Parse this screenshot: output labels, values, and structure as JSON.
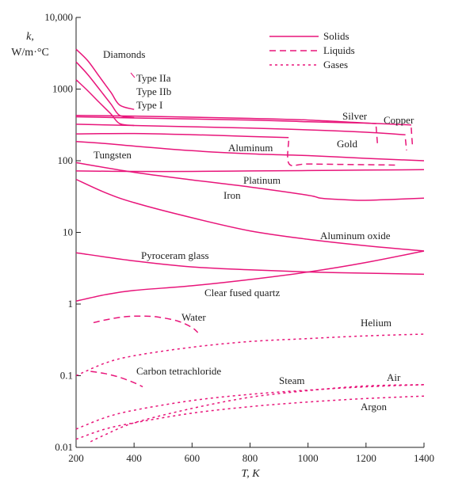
{
  "chart_data": {
    "type": "line",
    "title": "",
    "xlabel": "T, K",
    "ylabel_line1": "k,",
    "ylabel_line2": "W/m·°C",
    "x_range": [
      200,
      1400
    ],
    "y_range": [
      0.01,
      10000
    ],
    "y_scale": "log",
    "grid": false,
    "legend_placement": "top-right",
    "color": "#e8157a",
    "x_ticks": [
      {
        "value": 200,
        "label": "200"
      },
      {
        "value": 400,
        "label": "400"
      },
      {
        "value": 600,
        "label": "600"
      },
      {
        "value": 800,
        "label": "800"
      },
      {
        "value": 1000,
        "label": "1000"
      },
      {
        "value": 1200,
        "label": "1200"
      },
      {
        "value": 1400,
        "label": "1400"
      }
    ],
    "y_ticks": [
      {
        "value": 0.01,
        "label": "0.01"
      },
      {
        "value": 0.1,
        "label": "0.1"
      },
      {
        "value": 1,
        "label": "1"
      },
      {
        "value": 10,
        "label": "10"
      },
      {
        "value": 100,
        "label": "100"
      },
      {
        "value": 1000,
        "label": "1000"
      },
      {
        "value": 10000,
        "label": "10,000"
      }
    ],
    "legend": [
      {
        "label": "Solids",
        "style": "solid"
      },
      {
        "label": "Liquids",
        "style": "dashed"
      },
      {
        "label": "Gases",
        "style": "dotted"
      }
    ],
    "series": [
      {
        "id": "diamond-type-iia",
        "style": "solid",
        "x": [
          200,
          240,
          280,
          320,
          350,
          400
        ],
        "y": [
          3600,
          2500,
          1500,
          900,
          600,
          520
        ]
      },
      {
        "id": "diamond-type-iib",
        "style": "solid",
        "x": [
          200,
          240,
          280,
          320,
          350,
          400
        ],
        "y": [
          2400,
          1600,
          1000,
          620,
          430,
          400
        ]
      },
      {
        "id": "diamond-type-i",
        "style": "solid",
        "x": [
          200,
          240,
          280,
          320,
          350,
          400
        ],
        "y": [
          1350,
          950,
          650,
          450,
          330,
          310
        ]
      },
      {
        "id": "silver",
        "style": "solid",
        "x": [
          200,
          400,
          800,
          1000,
          1235
        ],
        "y": [
          430,
          420,
          390,
          370,
          330
        ]
      },
      {
        "id": "silver-liquid",
        "style": "dashed",
        "x": [
          1235,
          1240
        ],
        "y": [
          300,
          160
        ]
      },
      {
        "id": "copper",
        "style": "solid",
        "x": [
          200,
          400,
          800,
          1000,
          1200,
          1356
        ],
        "y": [
          410,
          395,
          370,
          350,
          335,
          315
        ]
      },
      {
        "id": "copper-liquid",
        "style": "dashed",
        "x": [
          1356,
          1360
        ],
        "y": [
          290,
          165
        ]
      },
      {
        "id": "gold",
        "style": "solid",
        "x": [
          200,
          400,
          800,
          1000,
          1200,
          1336
        ],
        "y": [
          323,
          310,
          285,
          270,
          250,
          230
        ]
      },
      {
        "id": "gold-liquid",
        "style": "dashed",
        "x": [
          1336,
          1340
        ],
        "y": [
          200,
          140
        ]
      },
      {
        "id": "aluminum",
        "style": "solid",
        "x": [
          200,
          400,
          600,
          800,
          933
        ],
        "y": [
          237,
          240,
          231,
          218,
          210
        ]
      },
      {
        "id": "aluminum-liquid",
        "style": "dashed",
        "x": [
          933,
          935,
          1000,
          1200,
          1300
        ],
        "y": [
          190,
          90,
          90,
          88,
          87
        ]
      },
      {
        "id": "tungsten",
        "style": "solid",
        "x": [
          200,
          300,
          400,
          600,
          800,
          1000,
          1200,
          1400
        ],
        "y": [
          185,
          174,
          160,
          138,
          125,
          118,
          108,
          100
        ]
      },
      {
        "id": "platinum",
        "style": "solid",
        "x": [
          200,
          400,
          600,
          800,
          1000,
          1200,
          1400
        ],
        "y": [
          72,
          71,
          71,
          72,
          73,
          74,
          75
        ]
      },
      {
        "id": "iron",
        "style": "solid",
        "x": [
          200,
          400,
          600,
          800,
          1000,
          1043,
          1100,
          1184,
          1300,
          1400
        ],
        "y": [
          94,
          69,
          54,
          43,
          33,
          30,
          29,
          28,
          29,
          30
        ]
      },
      {
        "id": "aluminum-oxide",
        "style": "solid",
        "x": [
          200,
          300,
          400,
          600,
          800,
          1000,
          1200,
          1400
        ],
        "y": [
          55,
          36,
          26,
          16,
          10.5,
          8,
          6.5,
          5.5
        ]
      },
      {
        "id": "pyroceram-glass",
        "style": "solid",
        "x": [
          200,
          400,
          600,
          800,
          1000,
          1200,
          1400
        ],
        "y": [
          5.2,
          4.0,
          3.3,
          3.0,
          2.8,
          2.7,
          2.6
        ]
      },
      {
        "id": "clear-fused-quartz",
        "style": "solid",
        "x": [
          200,
          300,
          400,
          600,
          800,
          1000,
          1200,
          1400
        ],
        "y": [
          1.1,
          1.35,
          1.55,
          1.8,
          2.2,
          2.8,
          3.8,
          5.5
        ]
      },
      {
        "id": "water",
        "style": "dashed",
        "x": [
          260,
          300,
          360,
          420,
          480,
          550,
          600,
          620
        ],
        "y": [
          0.55,
          0.6,
          0.66,
          0.68,
          0.66,
          0.58,
          0.47,
          0.4
        ]
      },
      {
        "id": "carbon-tetrachloride",
        "style": "dashed",
        "x": [
          250,
          300,
          350,
          400,
          430
        ],
        "y": [
          0.115,
          0.107,
          0.095,
          0.08,
          0.07
        ]
      },
      {
        "id": "helium",
        "style": "dotted",
        "x": [
          200,
          300,
          400,
          600,
          800,
          1000,
          1200,
          1400
        ],
        "y": [
          0.1,
          0.15,
          0.19,
          0.25,
          0.3,
          0.33,
          0.36,
          0.38
        ]
      },
      {
        "id": "steam",
        "style": "dotted",
        "x": [
          250,
          300,
          400,
          600,
          800,
          1000,
          1200,
          1400
        ],
        "y": [
          0.012,
          0.015,
          0.022,
          0.035,
          0.05,
          0.062,
          0.072,
          0.075
        ]
      },
      {
        "id": "air",
        "style": "dotted",
        "x": [
          200,
          300,
          400,
          600,
          800,
          1000,
          1200,
          1400
        ],
        "y": [
          0.018,
          0.026,
          0.033,
          0.045,
          0.055,
          0.063,
          0.07,
          0.075
        ]
      },
      {
        "id": "argon",
        "style": "dotted",
        "x": [
          200,
          300,
          400,
          600,
          800,
          1000,
          1200,
          1400
        ],
        "y": [
          0.013,
          0.018,
          0.022,
          0.03,
          0.037,
          0.043,
          0.048,
          0.052
        ]
      }
    ],
    "annotations": [
      {
        "id": "diamonds",
        "text": "Diamonds"
      },
      {
        "id": "type-iia",
        "text": "Type IIa"
      },
      {
        "id": "type-iib",
        "text": "Type IIb"
      },
      {
        "id": "type-i",
        "text": "Type I"
      },
      {
        "id": "silver",
        "text": "Silver"
      },
      {
        "id": "copper",
        "text": "Copper"
      },
      {
        "id": "gold",
        "text": "Gold"
      },
      {
        "id": "aluminum",
        "text": "Aluminum"
      },
      {
        "id": "tungsten",
        "text": "Tungsten"
      },
      {
        "id": "platinum",
        "text": "Platinum"
      },
      {
        "id": "iron",
        "text": "Iron"
      },
      {
        "id": "aluminum-oxide",
        "text": "Aluminum oxide"
      },
      {
        "id": "pyroceram-glass",
        "text": "Pyroceram glass"
      },
      {
        "id": "clear-fused-quartz",
        "text": "Clear fused quartz"
      },
      {
        "id": "water",
        "text": "Water"
      },
      {
        "id": "helium",
        "text": "Helium"
      },
      {
        "id": "carbon-tetrachloride",
        "text": "Carbon tetrachloride"
      },
      {
        "id": "steam",
        "text": "Steam"
      },
      {
        "id": "air",
        "text": "Air"
      },
      {
        "id": "argon",
        "text": "Argon"
      }
    ]
  }
}
